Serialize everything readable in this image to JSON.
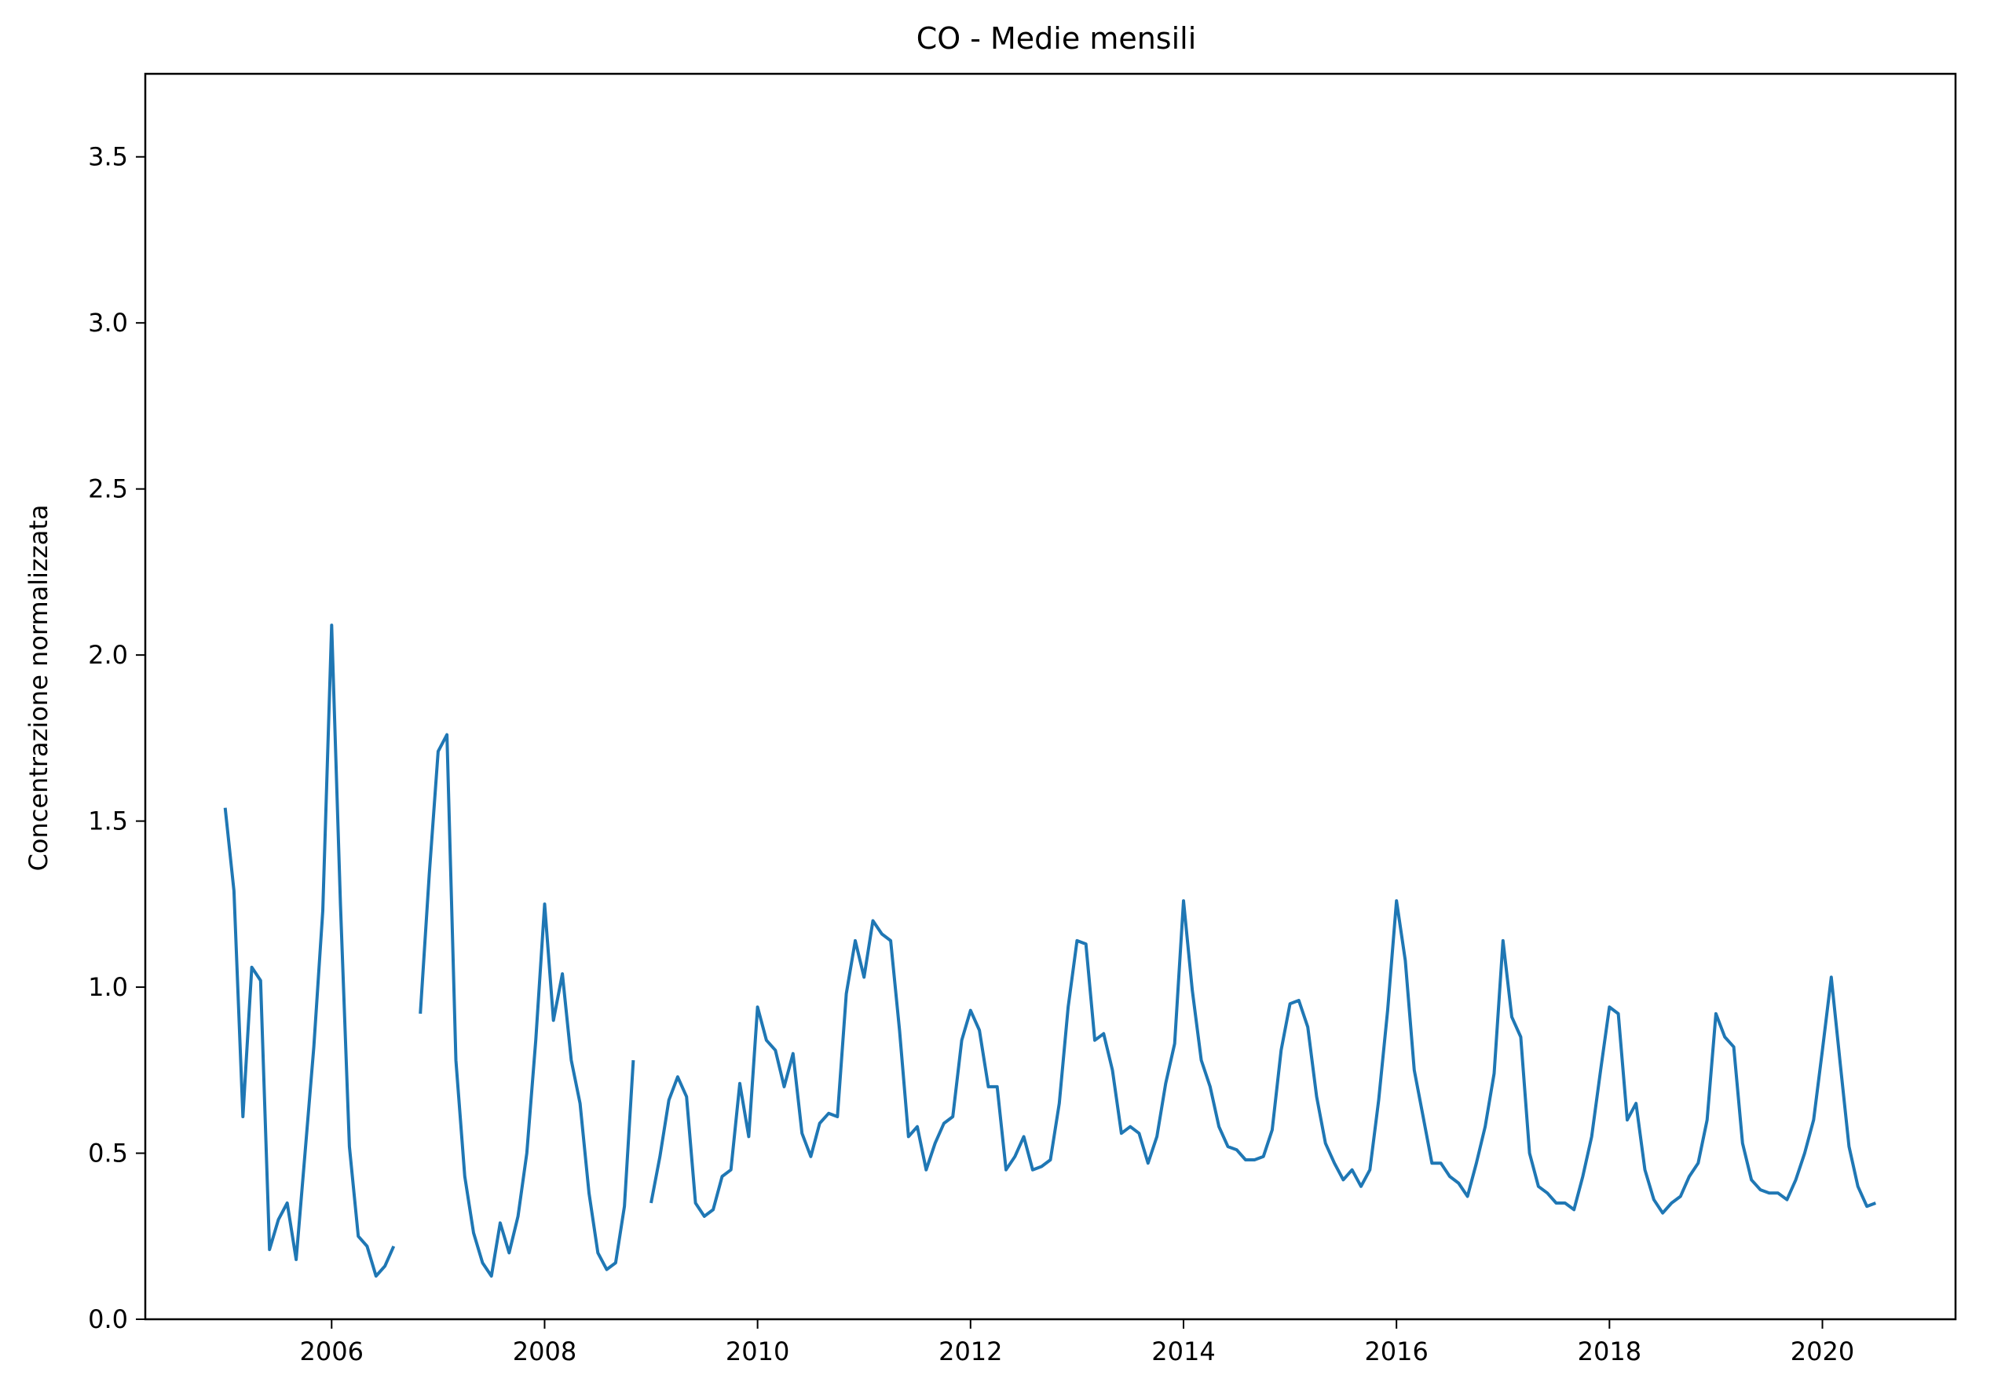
{
  "colors": {
    "series": "#1f77b4",
    "axis": "#000000",
    "background": "#ffffff"
  },
  "chart_data": {
    "type": "line",
    "title": "CO - Medie mensili",
    "xlabel": "",
    "ylabel": "Concentrazione normalizzata",
    "xlim": [
      2004.25,
      2021.25
    ],
    "ylim": [
      0,
      3.75
    ],
    "grid": false,
    "x_ticks": [
      2006,
      2008,
      2010,
      2012,
      2014,
      2016,
      2018,
      2020
    ],
    "x_tick_labels": [
      "2006",
      "2008",
      "2010",
      "2012",
      "2014",
      "2016",
      "2018",
      "2020"
    ],
    "y_ticks": [
      0,
      0.5,
      1,
      1.5,
      2,
      2.5,
      3,
      3.5
    ],
    "y_tick_labels": [
      "0.0",
      "0.5",
      "1.0",
      "1.5",
      "2.0",
      "2.5",
      "3.0",
      "3.5"
    ],
    "series": [
      {
        "segments": [
          {
            "x": [
              2005.0,
              2005.083,
              2005.167,
              2005.25,
              2005.333,
              2005.417,
              2005.5,
              2005.583,
              2005.667,
              2005.75,
              2005.833,
              2005.917,
              2006.0,
              2006.083,
              2006.167,
              2006.25,
              2006.333,
              2006.417,
              2006.5,
              2006.583
            ],
            "y": [
              1.54,
              1.29,
              0.61,
              1.06,
              1.02,
              0.21,
              0.3,
              0.35,
              0.18,
              0.5,
              0.82,
              1.23,
              2.09,
              1.25,
              0.52,
              0.25,
              0.22,
              0.13,
              0.16,
              0.22
            ]
          },
          {
            "x": [
              2006.833,
              2006.917,
              2007.0,
              2007.083,
              2007.167,
              2007.25,
              2007.333,
              2007.417,
              2007.5,
              2007.583,
              2007.667,
              2007.75,
              2007.833,
              2007.917,
              2008.0,
              2008.083,
              2008.167,
              2008.25,
              2008.333,
              2008.417,
              2008.5,
              2008.583,
              2008.667,
              2008.75,
              2008.833
            ],
            "y": [
              0.92,
              1.34,
              1.71,
              1.76,
              0.78,
              0.43,
              0.26,
              0.17,
              0.13,
              0.29,
              0.2,
              0.31,
              0.5,
              0.84,
              1.25,
              0.9,
              1.04,
              0.78,
              0.65,
              0.38,
              0.2,
              0.15,
              0.17,
              0.34,
              0.78
            ]
          },
          {
            "x": [
              2009.0,
              2009.083,
              2009.167,
              2009.25,
              2009.333,
              2009.417,
              2009.5,
              2009.583,
              2009.667,
              2009.75,
              2009.833,
              2009.917,
              2010.0,
              2010.083,
              2010.167,
              2010.25,
              2010.333,
              2010.417,
              2010.5,
              2010.583,
              2010.667,
              2010.75,
              2010.833,
              2010.917,
              2011.0,
              2011.083,
              2011.167,
              2011.25,
              2011.333,
              2011.417,
              2011.5,
              2011.583,
              2011.667,
              2011.75,
              2011.833,
              2011.917,
              2012.0,
              2012.083,
              2012.167,
              2012.25,
              2012.333,
              2012.417,
              2012.5,
              2012.583,
              2012.667,
              2012.75,
              2012.833,
              2012.917,
              2013.0,
              2013.083,
              2013.167,
              2013.25,
              2013.333,
              2013.417,
              2013.5,
              2013.583,
              2013.667,
              2013.75,
              2013.833,
              2013.917,
              2014.0,
              2014.083,
              2014.167,
              2014.25,
              2014.333,
              2014.417,
              2014.5,
              2014.583,
              2014.667,
              2014.75,
              2014.833,
              2014.917,
              2015.0,
              2015.083,
              2015.167,
              2015.25,
              2015.333,
              2015.417,
              2015.5,
              2015.583,
              2015.667,
              2015.75,
              2015.833,
              2015.917,
              2016.0,
              2016.083,
              2016.167,
              2016.25,
              2016.333,
              2016.417,
              2016.5,
              2016.583,
              2016.667,
              2016.75,
              2016.833,
              2016.917,
              2017.0,
              2017.083,
              2017.167,
              2017.25,
              2017.333,
              2017.417,
              2017.5,
              2017.583,
              2017.667,
              2017.75,
              2017.833,
              2017.917,
              2018.0,
              2018.083,
              2018.167,
              2018.25,
              2018.333,
              2018.417,
              2018.5,
              2018.583,
              2018.667,
              2018.75,
              2018.833,
              2018.917,
              2019.0,
              2019.083,
              2019.167,
              2019.25,
              2019.333,
              2019.417,
              2019.5,
              2019.583,
              2019.667,
              2019.75,
              2019.833,
              2019.917,
              2020.0,
              2020.083,
              2020.167,
              2020.25,
              2020.333,
              2020.417,
              2020.5
            ],
            "y": [
              0.35,
              0.49,
              0.66,
              0.73,
              0.67,
              0.35,
              0.31,
              0.33,
              0.43,
              0.45,
              0.71,
              0.55,
              0.94,
              0.84,
              0.81,
              0.7,
              0.8,
              0.56,
              0.49,
              0.59,
              0.62,
              0.61,
              0.98,
              1.14,
              1.03,
              1.2,
              1.16,
              1.14,
              0.87,
              0.55,
              0.58,
              0.45,
              0.53,
              0.59,
              0.61,
              0.84,
              0.93,
              0.87,
              0.7,
              0.7,
              0.45,
              0.49,
              0.55,
              0.45,
              0.46,
              0.48,
              0.65,
              0.94,
              1.14,
              1.13,
              0.84,
              0.86,
              0.75,
              0.56,
              0.58,
              0.56,
              0.47,
              0.55,
              0.71,
              0.83,
              1.26,
              0.99,
              0.78,
              0.7,
              0.58,
              0.52,
              0.51,
              0.48,
              0.48,
              0.49,
              0.57,
              0.81,
              0.95,
              0.96,
              0.88,
              0.67,
              0.53,
              0.47,
              0.42,
              0.45,
              0.4,
              0.45,
              0.66,
              0.93,
              1.26,
              1.08,
              0.75,
              0.61,
              0.47,
              0.47,
              0.43,
              0.41,
              0.37,
              0.47,
              0.58,
              0.74,
              1.14,
              0.91,
              0.85,
              0.5,
              0.4,
              0.38,
              0.35,
              0.35,
              0.33,
              0.43,
              0.55,
              0.75,
              0.94,
              0.92,
              0.6,
              0.65,
              0.45,
              0.36,
              0.32,
              0.35,
              0.37,
              0.43,
              0.47,
              0.6,
              0.92,
              0.85,
              0.82,
              0.53,
              0.42,
              0.39,
              0.38,
              0.38,
              0.36,
              0.42,
              0.5,
              0.6,
              0.81,
              1.03,
              0.77,
              0.52,
              0.4,
              0.34,
              0.35
            ]
          }
        ]
      }
    ]
  }
}
